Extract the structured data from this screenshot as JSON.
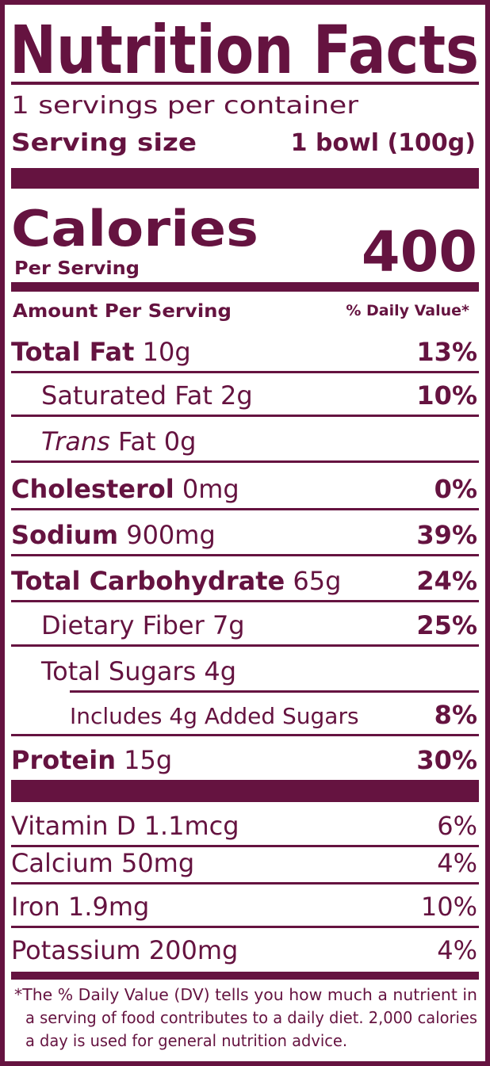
{
  "title": "Nutrition Facts",
  "servings": "1 servings per container",
  "serving_size": {
    "label": "Serving size",
    "value": "1 bowl (100g)"
  },
  "calories": {
    "label": "Calories",
    "sublabel": "Per Serving",
    "value": "400"
  },
  "header": {
    "amount": "Amount Per Serving",
    "dv": "% Daily Value*"
  },
  "nutrients": [
    {
      "bold": "Total Fat",
      "text": "10g",
      "dv": "13%"
    },
    {
      "text": "Saturated Fat 2g",
      "dv": "10%"
    },
    {
      "italic": "Trans",
      "text": "Fat 0g"
    },
    {
      "bold": "Cholesterol",
      "text": "0mg",
      "dv": "0%"
    },
    {
      "bold": "Sodium",
      "text": "900mg",
      "dv": "39%"
    },
    {
      "bold": "Total Carbohydrate",
      "text": "65g",
      "dv": "24%"
    },
    {
      "text": "Dietary Fiber 7g",
      "dv": "25%"
    },
    {
      "text": "Total Sugars 4g"
    },
    {
      "text": "Includes 4g Added Sugars",
      "dv": "8%"
    },
    {
      "bold": "Protein",
      "text": "15g",
      "dv": "30%"
    }
  ],
  "vitamins": [
    {
      "text": "Vitamin D 1.1mcg",
      "dv": "6%"
    },
    {
      "text": "Calcium 50mg",
      "dv": "4%"
    },
    {
      "text": "Iron 1.9mg",
      "dv": "10%"
    },
    {
      "text": "Potassium 200mg",
      "dv": "4%"
    }
  ],
  "footnote": [
    "*The % Daily Value (DV) tells you how much a nutrient in",
    "a serving of food contributes to a daily diet. 2,000 calories",
    "a day is used for general nutrition advice."
  ]
}
